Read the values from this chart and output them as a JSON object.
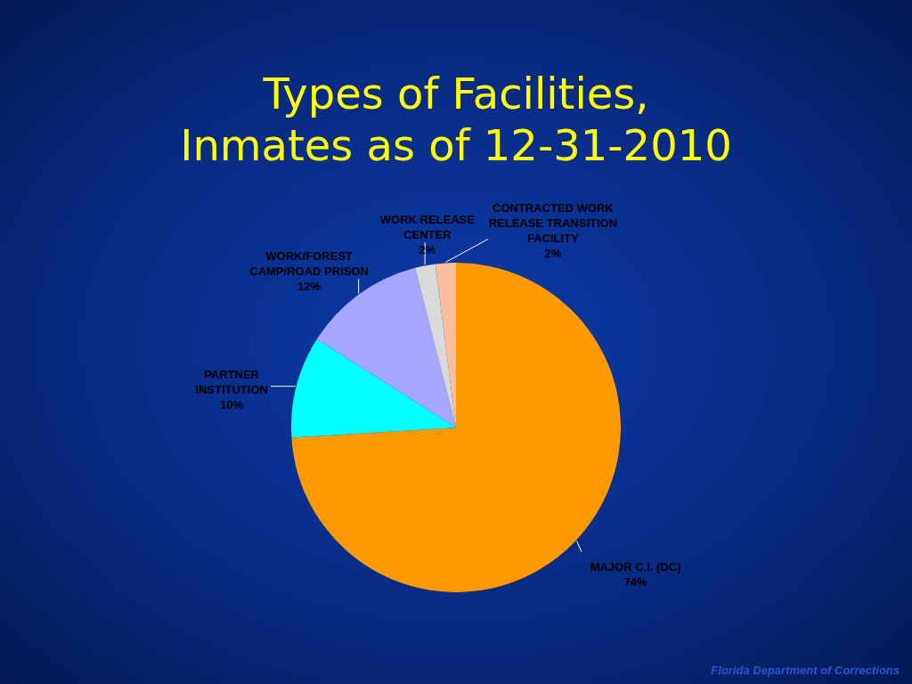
{
  "chart_data": {
    "type": "pie",
    "title": "Types of Facilities,\nInmates as of 12-31-2010",
    "categories": [
      "MAJOR C.I. (DC)",
      "PARTNER INSTITUTION",
      "WORK/FOREST CAMP/ROAD PRISON",
      "WORK RELEASE CENTER",
      "CONTRACTED WORK RELEASE TRANSITION FACILITY"
    ],
    "values": [
      74,
      10,
      12,
      2,
      2
    ],
    "value_labels": [
      "74%",
      "10%",
      "12%",
      "2%",
      "2%"
    ],
    "colors": [
      "#ff9900",
      "#00ffff",
      "#a6a6ff",
      "#d9d9d9",
      "#fbbf9f"
    ],
    "annotations": [
      "Florida Department of Corrections"
    ]
  }
}
